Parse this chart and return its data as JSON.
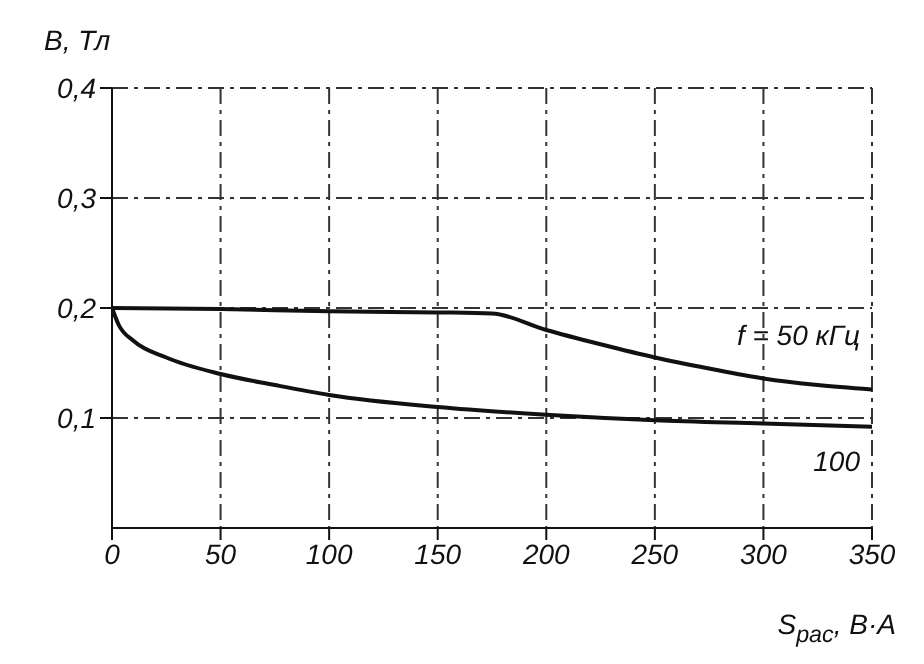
{
  "chart_data": {
    "type": "line",
    "xlabel": "S$_{рас}$, В·А",
    "ylabel": "B, Тл",
    "xlim": [
      0,
      350
    ],
    "xticks": [
      0,
      50,
      100,
      150,
      200,
      250,
      300,
      350
    ],
    "ylim": [
      0,
      0.4
    ],
    "yticks": [
      {
        "value": 0.1,
        "label": "0,1"
      },
      {
        "value": 0.2,
        "label": "0,2"
      },
      {
        "value": 0.3,
        "label": "0,3"
      },
      {
        "value": 0.4,
        "label": "0,4"
      }
    ],
    "grid": true,
    "line_style": "solid",
    "marker": "none",
    "series": [
      {
        "name": "f = 50 кГц",
        "color": "#111111",
        "x": [
          0,
          50,
          100,
          150,
          175,
          200,
          225,
          250,
          275,
          300,
          325,
          350
        ],
        "values": [
          0.2,
          0.199,
          0.197,
          0.196,
          0.195,
          0.18,
          0.167,
          0.155,
          0.145,
          0.136,
          0.13,
          0.126
        ]
      },
      {
        "name": "100",
        "color": "#111111",
        "x": [
          0,
          3,
          10,
          25,
          50,
          75,
          100,
          150,
          200,
          250,
          300,
          350
        ],
        "values": [
          0.2,
          0.185,
          0.17,
          0.155,
          0.14,
          0.13,
          0.121,
          0.11,
          0.103,
          0.098,
          0.095,
          0.092
        ]
      }
    ]
  }
}
